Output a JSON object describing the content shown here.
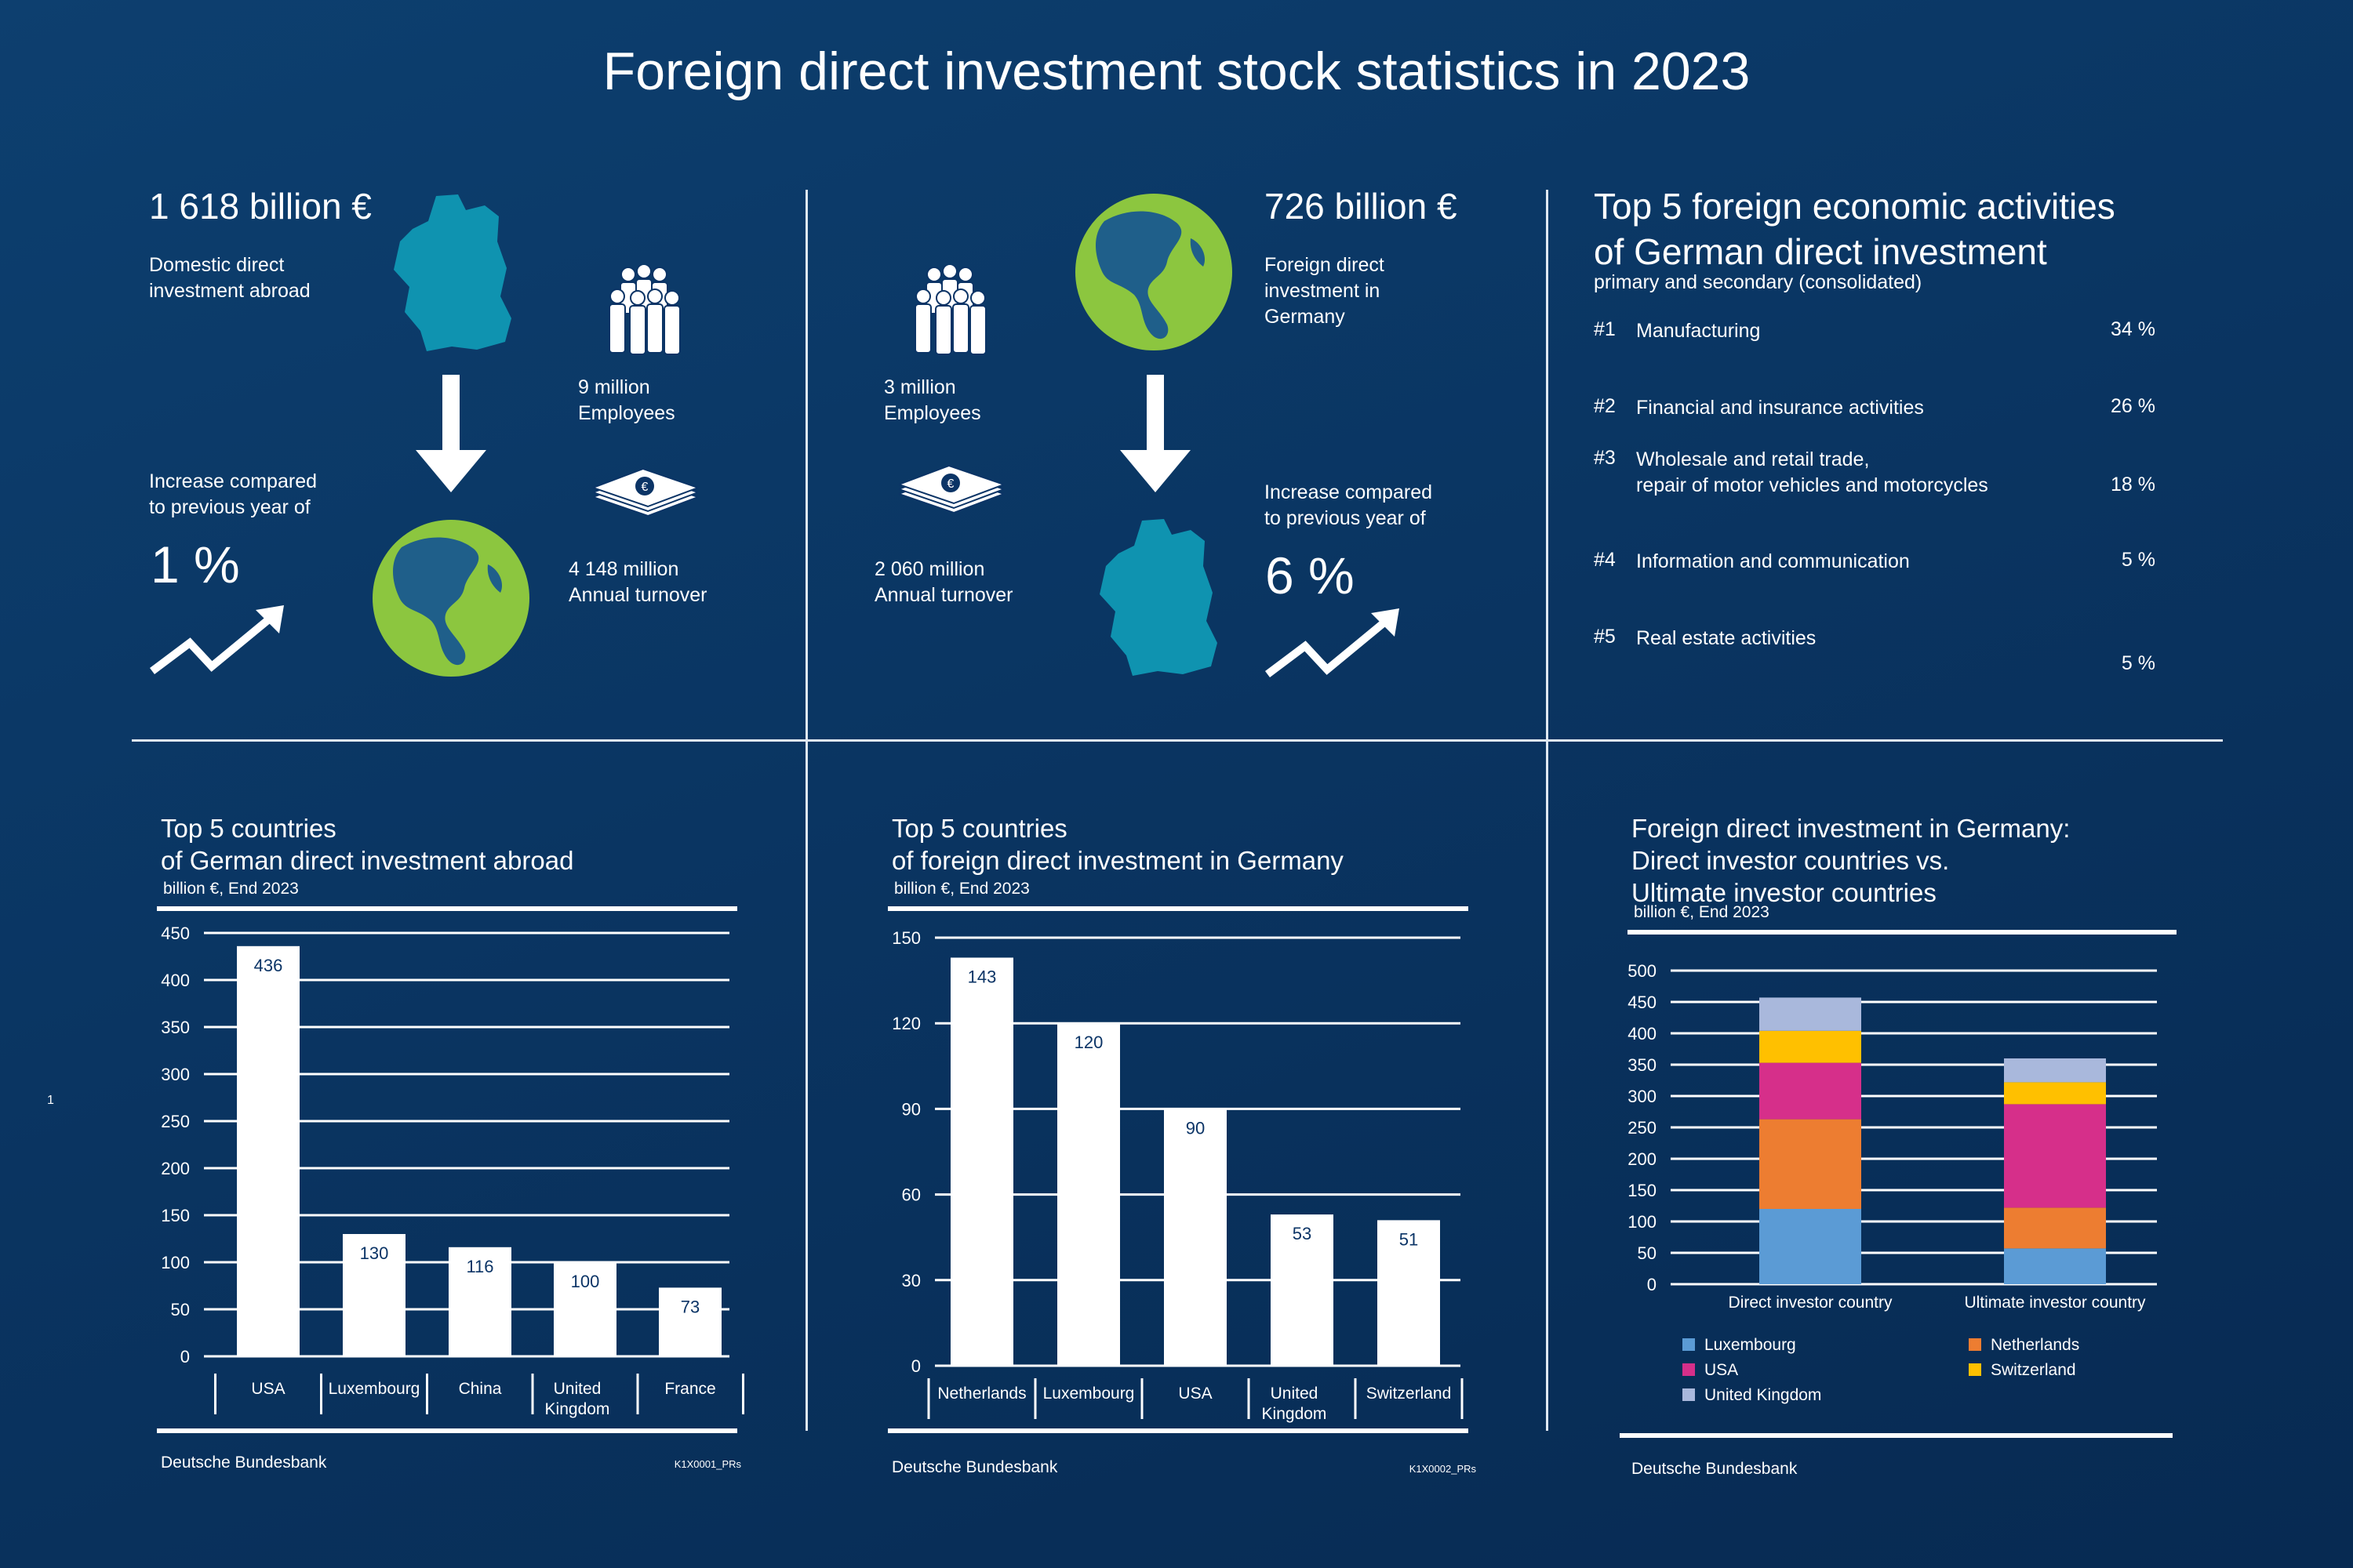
{
  "page_title": "Foreign direct investment stock statistics in 2023",
  "colors": {
    "globe_green": "#8cc63f",
    "globe_blue": "#1f5f8a",
    "map_teal": "#0f93b0",
    "bar_white": "#ffffff",
    "value_text": "#0b3466"
  },
  "panel_out": {
    "amount": "1 618 billion €",
    "desc": [
      "Domestic direct",
      "investment abroad"
    ],
    "increase_label": [
      "Increase compared",
      "to previous year of"
    ],
    "increase_value": "1 %",
    "employees": [
      "9 million",
      "Employees"
    ],
    "turnover": [
      "4 148 million",
      "Annual turnover"
    ],
    "icons": [
      "germany-map-icon",
      "down-arrow-icon",
      "globe-icon",
      "people-icon",
      "banknotes-icon",
      "trend-up-icon"
    ]
  },
  "panel_in": {
    "amount": "726 billion €",
    "desc": [
      "Foreign direct",
      "investment in",
      "Germany"
    ],
    "increase_label": [
      "Increase compared",
      "to previous year of"
    ],
    "increase_value": "6 %",
    "employees": [
      "3 million",
      "Employees"
    ],
    "turnover": [
      "2 060 million",
      "Annual turnover"
    ]
  },
  "activities": {
    "title": [
      "Top 5 foreign economic activities",
      "of German direct investment"
    ],
    "subtitle": "primary and secondary (consolidated)",
    "items": [
      {
        "rank": "#1",
        "label": [
          "Manufacturing"
        ],
        "value": "34 %"
      },
      {
        "rank": "#2",
        "label": [
          "Financial and insurance activities"
        ],
        "value": "26 %"
      },
      {
        "rank": "#3",
        "label": [
          "Wholesale and retail trade,",
          "repair of motor vehicles and motorcycles"
        ],
        "value": "18 %"
      },
      {
        "rank": "#4",
        "label": [
          "Information and communication"
        ],
        "value": "5 %"
      },
      {
        "rank": "#5",
        "label": [
          "Real estate activities"
        ],
        "value": "5 %"
      }
    ]
  },
  "side_marker": "1",
  "chart_data": [
    {
      "type": "bar",
      "title": [
        "Top 5 countries",
        "of German direct investment abroad"
      ],
      "unit_label": "billion €, End 2023",
      "categories": [
        [
          "USA"
        ],
        [
          "Luxembourg"
        ],
        [
          "China"
        ],
        [
          "United",
          "Kingdom"
        ],
        [
          "France"
        ]
      ],
      "values": [
        436,
        130,
        116,
        100,
        73
      ],
      "ylim": [
        0,
        450
      ],
      "yticks": [
        0,
        50,
        100,
        150,
        200,
        250,
        300,
        350,
        400,
        450
      ],
      "grid": true,
      "source": "Deutsche Bundesbank",
      "code": "K1X0001_PRs"
    },
    {
      "type": "bar",
      "title": [
        "Top 5 countries",
        "of foreign direct investment in Germany"
      ],
      "unit_label": "billion €, End 2023",
      "categories": [
        [
          "Netherlands"
        ],
        [
          "Luxembourg"
        ],
        [
          "USA"
        ],
        [
          "United",
          "Kingdom"
        ],
        [
          "Switzerland"
        ]
      ],
      "values": [
        143,
        120,
        90,
        53,
        51
      ],
      "ylim": [
        0,
        150
      ],
      "yticks": [
        0,
        30,
        60,
        90,
        120,
        150
      ],
      "grid": true,
      "source": "Deutsche Bundesbank",
      "code": "K1X0002_PRs"
    },
    {
      "type": "bar",
      "stacked": true,
      "title": [
        "Foreign direct investment in Germany:",
        "Direct investor countries vs.",
        "Ultimate investor countries"
      ],
      "unit_label": "billion €, End 2023",
      "categories": [
        "Direct investor country",
        "Ultimate investor country"
      ],
      "series": [
        {
          "name": "Luxembourg",
          "color": "#5b9bd5",
          "values": [
            120,
            57
          ]
        },
        {
          "name": "Netherlands",
          "color": "#ed7d31",
          "values": [
            143,
            65
          ]
        },
        {
          "name": "USA",
          "color": "#d62f8a",
          "values": [
            90,
            165
          ]
        },
        {
          "name": "Switzerland",
          "color": "#ffc000",
          "values": [
            51,
            35
          ]
        },
        {
          "name": "United Kingdom",
          "color": "#a9b8dc",
          "values": [
            53,
            38
          ]
        }
      ],
      "ylim": [
        0,
        500
      ],
      "yticks": [
        0,
        50,
        100,
        150,
        200,
        250,
        300,
        350,
        400,
        450,
        500
      ],
      "grid": true,
      "legend_position": "bottom",
      "source": "Deutsche Bundesbank"
    }
  ]
}
